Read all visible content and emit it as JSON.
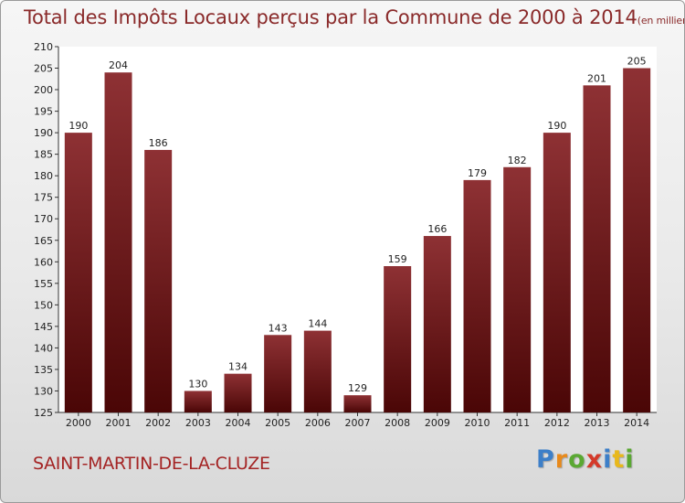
{
  "title": "Total des Impôts Locaux perçus par la Commune de 2000 à 2014",
  "title_unit": "(en milliers d'€)",
  "commune": "SAINT-MARTIN-DE-LA-CLUZE",
  "logo": {
    "letters": [
      "P",
      "r",
      "o",
      "x",
      "i",
      "t",
      "i"
    ],
    "colors": [
      "#3d7fc8",
      "#e88a1c",
      "#5aa832",
      "#d43a2a",
      "#3d7fc8",
      "#e8b81c",
      "#5aa832"
    ]
  },
  "colors": {
    "bar_top": "#8e3134",
    "bar_bottom": "#4a0606",
    "title": "#8a2a2a",
    "commune": "#a42424"
  },
  "chart_data": {
    "type": "bar",
    "title": "Total des Impôts Locaux perçus par la Commune de 2000 à 2014",
    "xlabel": "",
    "ylabel": "",
    "ylim": [
      125,
      210
    ],
    "yticks": [
      125,
      130,
      135,
      140,
      145,
      150,
      155,
      160,
      165,
      170,
      175,
      180,
      185,
      190,
      195,
      200,
      205,
      210
    ],
    "grid": false,
    "categories": [
      "2000",
      "2001",
      "2002",
      "2003",
      "2004",
      "2005",
      "2006",
      "2007",
      "2008",
      "2009",
      "2010",
      "2011",
      "2012",
      "2013",
      "2014"
    ],
    "values": [
      190,
      204,
      186,
      130,
      134,
      143,
      144,
      129,
      159,
      166,
      179,
      182,
      190,
      201,
      205
    ]
  }
}
